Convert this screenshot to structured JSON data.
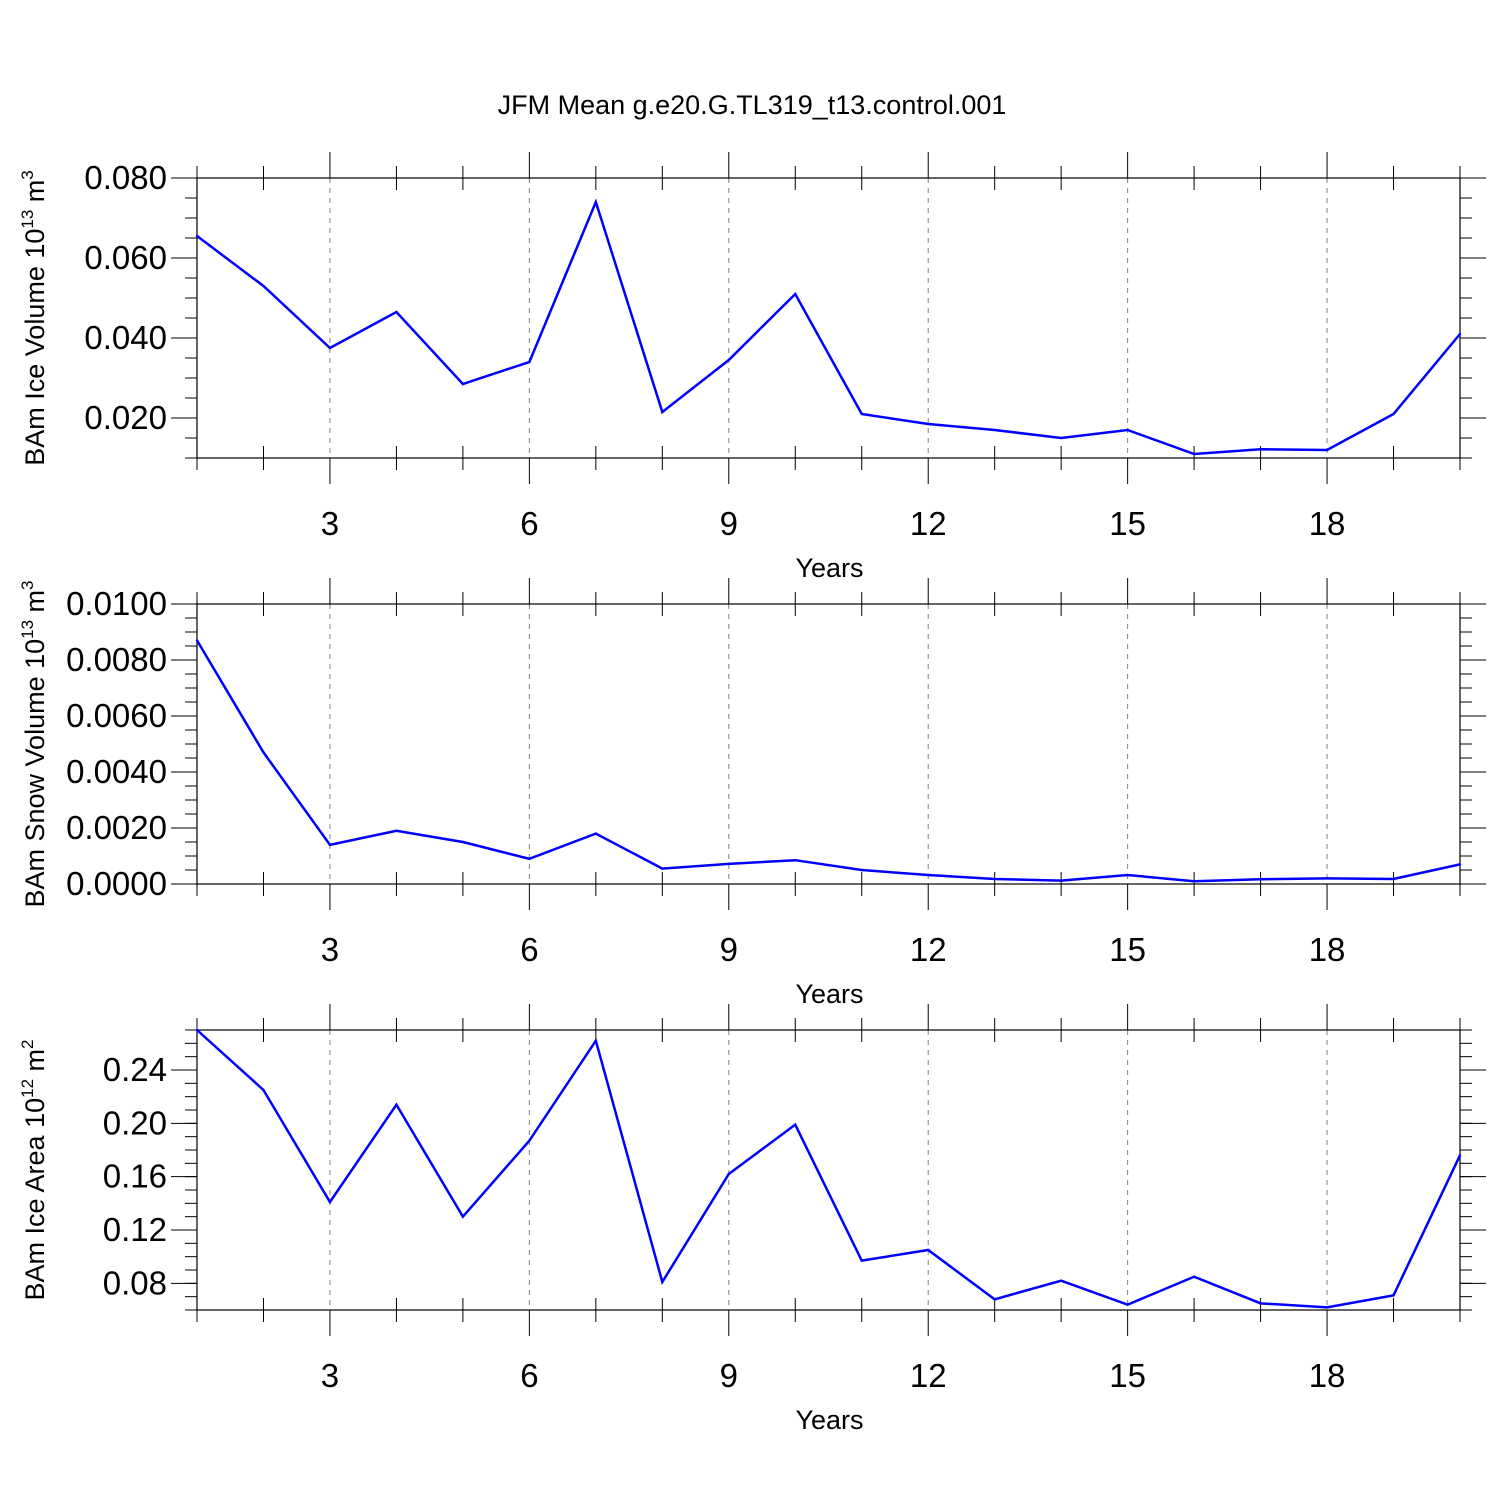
{
  "title": "JFM Mean g.e20.G.TL319_t13.control.001",
  "colors": {
    "line": "#0000ff",
    "axes": "#000000",
    "grid": "#808080",
    "background": "#ffffff"
  },
  "chart_data": [
    {
      "type": "line",
      "ylabel": {
        "text": "BAm Ice Volume 10",
        "exponent": "13",
        "unit": " m",
        "unit_exponent": "3"
      },
      "xlabel": "Years",
      "xlim": [
        1,
        20
      ],
      "ylim": [
        0.01,
        0.08
      ],
      "x_ticks": [
        3,
        6,
        9,
        12,
        15,
        18
      ],
      "x_tick_labels": [
        "3",
        "6",
        "9",
        "12",
        "15",
        "18"
      ],
      "y_ticks": [
        0.02,
        0.04,
        0.06,
        0.08
      ],
      "y_tick_labels": [
        "0.020",
        "0.040",
        "0.060",
        "0.080"
      ],
      "y_minor_step": 0.005,
      "vertical_grid": "dashed at major x ticks",
      "x": [
        1,
        2,
        3,
        4,
        5,
        6,
        7,
        8,
        9,
        10,
        11,
        12,
        13,
        14,
        15,
        16,
        17,
        18,
        19,
        20
      ],
      "series": [
        {
          "values": [
            0.0655,
            0.053,
            0.0375,
            0.0465,
            0.0285,
            0.034,
            0.074,
            0.0215,
            0.0345,
            0.051,
            0.021,
            0.0185,
            0.017,
            0.015,
            0.017,
            0.011,
            0.0122,
            0.012,
            0.021,
            0.041
          ]
        }
      ]
    },
    {
      "type": "line",
      "ylabel": {
        "text": "BAm Snow Volume 10",
        "exponent": "13",
        "unit": " m",
        "unit_exponent": "3"
      },
      "xlabel": "Years",
      "xlim": [
        1,
        20
      ],
      "ylim": [
        0.0,
        0.01
      ],
      "x_ticks": [
        3,
        6,
        9,
        12,
        15,
        18
      ],
      "x_tick_labels": [
        "3",
        "6",
        "9",
        "12",
        "15",
        "18"
      ],
      "y_ticks": [
        0.0,
        0.002,
        0.004,
        0.006,
        0.008,
        0.01
      ],
      "y_tick_labels": [
        "0.0000",
        "0.0020",
        "0.0040",
        "0.0060",
        "0.0080",
        "0.0100"
      ],
      "y_minor_step": 0.0005,
      "vertical_grid": "dashed at major x ticks",
      "x": [
        1,
        2,
        3,
        4,
        5,
        6,
        7,
        8,
        9,
        10,
        11,
        12,
        13,
        14,
        15,
        16,
        17,
        18,
        19,
        20
      ],
      "series": [
        {
          "values": [
            0.0087,
            0.0047,
            0.0014,
            0.0019,
            0.0015,
            0.0009,
            0.0018,
            0.00055,
            0.00072,
            0.00085,
            0.0005,
            0.00032,
            0.00018,
            0.00012,
            0.00032,
            0.0001,
            0.00017,
            0.0002,
            0.00018,
            0.0007
          ]
        }
      ]
    },
    {
      "type": "line",
      "ylabel": {
        "text": "BAm Ice Area 10",
        "exponent": "12",
        "unit": " m",
        "unit_exponent": "2"
      },
      "xlabel": "Years",
      "xlim": [
        1,
        20
      ],
      "ylim": [
        0.06,
        0.27
      ],
      "x_ticks": [
        3,
        6,
        9,
        12,
        15,
        18
      ],
      "x_tick_labels": [
        "3",
        "6",
        "9",
        "12",
        "15",
        "18"
      ],
      "y_ticks": [
        0.08,
        0.12,
        0.16,
        0.2,
        0.24
      ],
      "y_tick_labels": [
        "0.08",
        "0.12",
        "0.16",
        "0.20",
        "0.24"
      ],
      "y_minor_step": 0.01,
      "vertical_grid": "dashed at major x ticks",
      "x": [
        1,
        2,
        3,
        4,
        5,
        6,
        7,
        8,
        9,
        10,
        11,
        12,
        13,
        14,
        15,
        16,
        17,
        18,
        19,
        20
      ],
      "series": [
        {
          "values": [
            0.27,
            0.225,
            0.141,
            0.214,
            0.13,
            0.187,
            0.262,
            0.081,
            0.162,
            0.199,
            0.097,
            0.105,
            0.068,
            0.082,
            0.064,
            0.085,
            0.065,
            0.062,
            0.071,
            0.176
          ]
        }
      ]
    }
  ]
}
